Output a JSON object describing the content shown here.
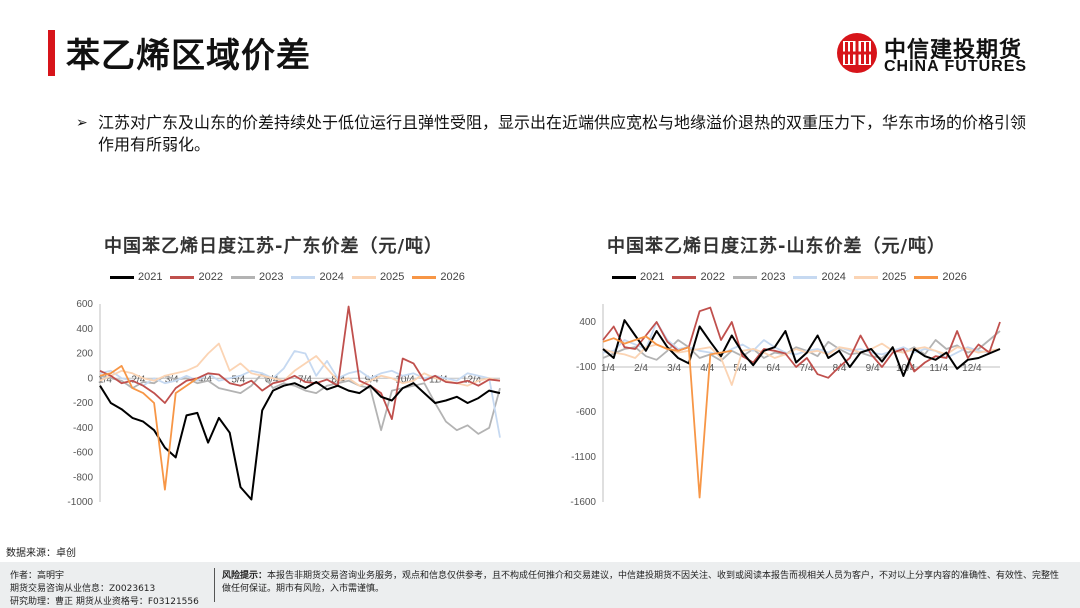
{
  "header": {
    "title": "苯乙烯区域价差",
    "logo_cn": "中信建投期货",
    "logo_en": "CHINA FUTURES"
  },
  "bullet": {
    "mark": "➢",
    "text": "江苏对广东及山东的价差持续处于低位运行且弹性受阻，显示出在近端供应宽松与地缘溢价退热的双重压力下，华东市场的价格引领作用有所弱化。"
  },
  "colors": {
    "brand_red": "#d7141a",
    "s2021": "#000000",
    "s2022": "#c0504d",
    "s2023": "#b3b3b3",
    "s2024": "#c6d9f1",
    "s2025": "#fbd4b4",
    "s2026": "#f79646"
  },
  "chart_data": [
    {
      "type": "line",
      "title": "中国苯乙烯日度江苏-广东价差（元/吨）",
      "legend": [
        "2021",
        "2022",
        "2023",
        "2024",
        "2025",
        "2026"
      ],
      "x_tick_labels": [
        "1/4",
        "2/4",
        "3/4",
        "4/4",
        "5/4",
        "6/4",
        "7/4",
        "8/4",
        "9/4",
        "10/4",
        "11/4",
        "12/4"
      ],
      "y_ticks": [
        600,
        400,
        200,
        0,
        -200,
        -400,
        -600,
        -800,
        -1000
      ],
      "ylim": [
        -1000,
        600
      ],
      "series": [
        {
          "name": "2021",
          "values": [
            -60,
            -200,
            -250,
            -320,
            -350,
            -420,
            -560,
            -640,
            -300,
            -280,
            -520,
            -320,
            -440,
            -880,
            -980,
            -260,
            -100,
            -60,
            -40,
            -80,
            -30,
            -90,
            -60,
            -100,
            -120,
            -60,
            -150,
            -180,
            -80,
            -40,
            -120,
            -200,
            -180,
            -150,
            -200,
            -160,
            -100,
            -120
          ]
        },
        {
          "name": "2022",
          "values": [
            60,
            20,
            -40,
            -20,
            -60,
            -120,
            -200,
            -80,
            -20,
            0,
            40,
            30,
            -40,
            -60,
            -20,
            -100,
            -40,
            -20,
            20,
            -30,
            -40,
            -10,
            -60,
            580,
            -20,
            -60,
            -120,
            -330,
            160,
            120,
            -20,
            20,
            -30,
            -40,
            -20,
            -60,
            -10,
            -20
          ]
        },
        {
          "name": "2023",
          "values": [
            20,
            0,
            -20,
            -80,
            -30,
            -40,
            20,
            -10,
            0,
            -40,
            -20,
            -80,
            -100,
            -120,
            -60,
            40,
            -80,
            -40,
            -60,
            -100,
            -120,
            -60,
            -40,
            -20,
            -60,
            -80,
            -420,
            -100,
            -80,
            -60,
            -40,
            -200,
            -350,
            -420,
            -380,
            -450,
            -400,
            -80
          ]
        },
        {
          "name": "2024",
          "values": [
            40,
            60,
            0,
            -20,
            -60,
            0,
            -40,
            -20,
            20,
            -20,
            40,
            -20,
            0,
            20,
            60,
            40,
            0,
            80,
            220,
            200,
            20,
            140,
            0,
            40,
            60,
            0,
            40,
            60,
            20,
            40,
            0,
            20,
            0,
            -20,
            40,
            20,
            0,
            -480
          ]
        },
        {
          "name": "2025",
          "values": [
            -20,
            20,
            60,
            40,
            0,
            -20,
            20,
            40,
            60,
            100,
            200,
            280,
            60,
            120,
            40,
            20,
            0,
            -20,
            60,
            120,
            180,
            80,
            -20,
            0,
            -60,
            -20,
            20,
            0,
            -40,
            -20,
            40,
            0,
            -20,
            -40,
            -60,
            -20,
            0,
            -20
          ]
        },
        {
          "name": "2026",
          "values": [
            20,
            40,
            100,
            -80,
            -120,
            -200,
            -900,
            -120,
            -60,
            0
          ]
        }
      ]
    },
    {
      "type": "line",
      "title": "中国苯乙烯日度江苏-山东价差（元/吨）",
      "legend": [
        "2021",
        "2022",
        "2023",
        "2024",
        "2025",
        "2026"
      ],
      "x_tick_labels": [
        "1/4",
        "2/4",
        "3/4",
        "4/4",
        "5/4",
        "6/4",
        "7/4",
        "8/4",
        "9/4",
        "10/4",
        "11/4",
        "12/4"
      ],
      "y_ticks": [
        400,
        -100,
        -600,
        -1100,
        -1600
      ],
      "ylim": [
        -1600,
        600
      ],
      "series": [
        {
          "name": "2021",
          "values": [
            100,
            0,
            420,
            250,
            80,
            300,
            120,
            0,
            -60,
            350,
            180,
            20,
            250,
            60,
            -80,
            80,
            120,
            300,
            -50,
            60,
            250,
            0,
            80,
            -100,
            60,
            100,
            -40,
            120,
            -200,
            100,
            20,
            -20,
            60,
            -120,
            -20,
            0,
            50,
            100
          ]
        },
        {
          "name": "2022",
          "values": [
            200,
            350,
            120,
            100,
            250,
            400,
            180,
            80,
            120,
            520,
            560,
            200,
            400,
            20,
            -50,
            100,
            80,
            50,
            -100,
            0,
            -180,
            -220,
            -100,
            0,
            250,
            40,
            -100,
            60,
            100,
            -150,
            -50,
            20,
            0,
            300,
            0,
            150,
            60,
            400
          ]
        },
        {
          "name": "2023",
          "values": [
            0,
            50,
            100,
            120,
            20,
            -20,
            80,
            200,
            120,
            0,
            40,
            -30,
            80,
            20,
            100,
            0,
            60,
            40,
            120,
            80,
            20,
            180,
            100,
            40,
            60,
            20,
            0,
            100,
            60,
            120,
            40,
            200,
            100,
            140,
            60,
            100,
            200,
            300
          ]
        },
        {
          "name": "2024",
          "values": [
            60,
            80,
            200,
            150,
            100,
            400,
            200,
            100,
            120,
            80,
            60,
            40,
            100,
            150,
            80,
            200,
            120,
            60,
            40,
            80,
            100,
            60,
            120,
            80,
            100,
            60,
            40,
            80,
            120,
            60,
            100,
            80,
            0,
            60,
            120,
            80,
            60,
            100
          ]
        },
        {
          "name": "2025",
          "values": [
            100,
            60,
            40,
            0,
            120,
            150,
            100,
            60,
            80,
            100,
            120,
            0,
            -300,
            80,
            100,
            60,
            0,
            40,
            100,
            60,
            80,
            40,
            120,
            100,
            60,
            100,
            160,
            80,
            60,
            100,
            120,
            80,
            40,
            120,
            100,
            60,
            80,
            100
          ]
        },
        {
          "name": "2026",
          "values": [
            180,
            220,
            160,
            200,
            240,
            150,
            100,
            80,
            120,
            -1550,
            40,
            60,
            80
          ]
        }
      ]
    }
  ],
  "source": "数据来源：卓创",
  "footer": {
    "author": "作者：高明宇",
    "license": "期货交易咨询从业信息：Z0023613",
    "assistant": "研究助理：曹正 期货从业资格号：F03121556",
    "risk_label": "风险提示：",
    "risk_text": "本报告非期货交易咨询业务服务，观点和信息仅供参考，且不构成任何推介和交易建议，中信建投期货不因关注、收到或阅读本报告而视相关人员为客户，不对以上分享内容的准确性、有效性、完整性做任何保证。期市有风险，入市需谨慎。"
  }
}
